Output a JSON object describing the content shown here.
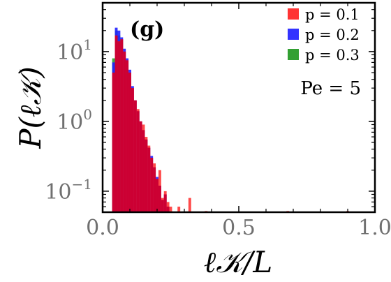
{
  "chart_data": {
    "type": "bar",
    "subtype": "overlaid-histogram",
    "panel_label": "(g)",
    "annotation": "Pe = 5",
    "xlabel": "ℓ𝒦/L",
    "ylabel": "P(ℓ𝒦)",
    "xlim": [
      0.0,
      1.0
    ],
    "ylim": [
      0.05,
      50
    ],
    "yscale": "log",
    "grid": false,
    "legend_position": "top-right",
    "x_ticks": [
      {
        "value": 0.0,
        "label": "0.0"
      },
      {
        "value": 0.5,
        "label": "0.5"
      },
      {
        "value": 1.0,
        "label": "1.0"
      }
    ],
    "y_ticks": [
      {
        "value": 0.1,
        "base": "10",
        "exp": "−1"
      },
      {
        "value": 1,
        "base": "10",
        "exp": "0"
      },
      {
        "value": 10,
        "base": "10",
        "exp": "1"
      }
    ],
    "series": [
      {
        "name": "p = 0.3",
        "color": "#2ca02c",
        "bins": [
          {
            "x0": 0.035,
            "x1": 0.045,
            "y": 8
          },
          {
            "x0": 0.045,
            "x1": 0.055,
            "y": 20
          },
          {
            "x0": 0.055,
            "x1": 0.065,
            "y": 17
          },
          {
            "x0": 0.065,
            "x1": 0.075,
            "y": 15
          }
        ]
      },
      {
        "name": "p = 0.2",
        "color": "#1f1fff",
        "bins": [
          {
            "x0": 0.035,
            "x1": 0.045,
            "y": 7
          },
          {
            "x0": 0.045,
            "x1": 0.055,
            "y": 22
          },
          {
            "x0": 0.055,
            "x1": 0.065,
            "y": 20
          },
          {
            "x0": 0.065,
            "x1": 0.075,
            "y": 16
          },
          {
            "x0": 0.075,
            "x1": 0.085,
            "y": 11
          },
          {
            "x0": 0.085,
            "x1": 0.095,
            "y": 8
          },
          {
            "x0": 0.095,
            "x1": 0.105,
            "y": 5.5
          },
          {
            "x0": 0.105,
            "x1": 0.115,
            "y": 3.2
          },
          {
            "x0": 0.115,
            "x1": 0.125,
            "y": 2.0
          },
          {
            "x0": 0.125,
            "x1": 0.135,
            "y": 1.4
          },
          {
            "x0": 0.135,
            "x1": 0.145,
            "y": 1.0
          },
          {
            "x0": 0.145,
            "x1": 0.155,
            "y": 0.75
          },
          {
            "x0": 0.155,
            "x1": 0.165,
            "y": 0.55
          },
          {
            "x0": 0.165,
            "x1": 0.175,
            "y": 0.42
          },
          {
            "x0": 0.175,
            "x1": 0.185,
            "y": 0.32
          },
          {
            "x0": 0.185,
            "x1": 0.195,
            "y": 0.22
          },
          {
            "x0": 0.195,
            "x1": 0.205,
            "y": 0.16
          },
          {
            "x0": 0.205,
            "x1": 0.215,
            "y": 0.12
          },
          {
            "x0": 0.215,
            "x1": 0.225,
            "y": 0.075
          },
          {
            "x0": 0.225,
            "x1": 0.235,
            "y": 0.09
          },
          {
            "x0": 0.235,
            "x1": 0.245,
            "y": 0.06
          }
        ]
      },
      {
        "name": "p = 0.1",
        "color": "#ff2a2a",
        "bins": [
          {
            "x0": 0.025,
            "x1": 0.035,
            "y": 0.05
          },
          {
            "x0": 0.035,
            "x1": 0.045,
            "y": 5
          },
          {
            "x0": 0.045,
            "x1": 0.055,
            "y": 17
          },
          {
            "x0": 0.055,
            "x1": 0.065,
            "y": 14
          },
          {
            "x0": 0.065,
            "x1": 0.075,
            "y": 15
          },
          {
            "x0": 0.075,
            "x1": 0.085,
            "y": 10
          },
          {
            "x0": 0.085,
            "x1": 0.095,
            "y": 7.5
          },
          {
            "x0": 0.095,
            "x1": 0.105,
            "y": 5
          },
          {
            "x0": 0.105,
            "x1": 0.115,
            "y": 3.0
          },
          {
            "x0": 0.115,
            "x1": 0.125,
            "y": 2.0
          },
          {
            "x0": 0.125,
            "x1": 0.135,
            "y": 1.5
          },
          {
            "x0": 0.135,
            "x1": 0.145,
            "y": 1.0
          },
          {
            "x0": 0.145,
            "x1": 0.155,
            "y": 0.9
          },
          {
            "x0": 0.155,
            "x1": 0.165,
            "y": 0.6
          },
          {
            "x0": 0.165,
            "x1": 0.175,
            "y": 0.45
          },
          {
            "x0": 0.175,
            "x1": 0.185,
            "y": 0.3
          },
          {
            "x0": 0.185,
            "x1": 0.195,
            "y": 0.25
          },
          {
            "x0": 0.195,
            "x1": 0.205,
            "y": 0.15
          },
          {
            "x0": 0.205,
            "x1": 0.215,
            "y": 0.2
          },
          {
            "x0": 0.215,
            "x1": 0.225,
            "y": 0.08
          },
          {
            "x0": 0.225,
            "x1": 0.235,
            "y": 0.1
          },
          {
            "x0": 0.235,
            "x1": 0.245,
            "y": 0.07
          },
          {
            "x0": 0.245,
            "x1": 0.255,
            "y": 0.06
          },
          {
            "x0": 0.275,
            "x1": 0.285,
            "y": 0.06
          },
          {
            "x0": 0.315,
            "x1": 0.325,
            "y": 0.08
          },
          {
            "x0": 0.375,
            "x1": 0.385,
            "y": 0.052
          },
          {
            "x0": 0.675,
            "x1": 0.685,
            "y": 0.052
          },
          {
            "x0": 0.895,
            "x1": 0.905,
            "y": 0.052
          }
        ]
      }
    ],
    "overlap_color": "#cc0033",
    "legend": [
      {
        "label": "p = 0.1",
        "color": "#ff3333"
      },
      {
        "label": "p = 0.2",
        "color": "#3333ff"
      },
      {
        "label": "p = 0.3",
        "color": "#33a033"
      }
    ]
  }
}
